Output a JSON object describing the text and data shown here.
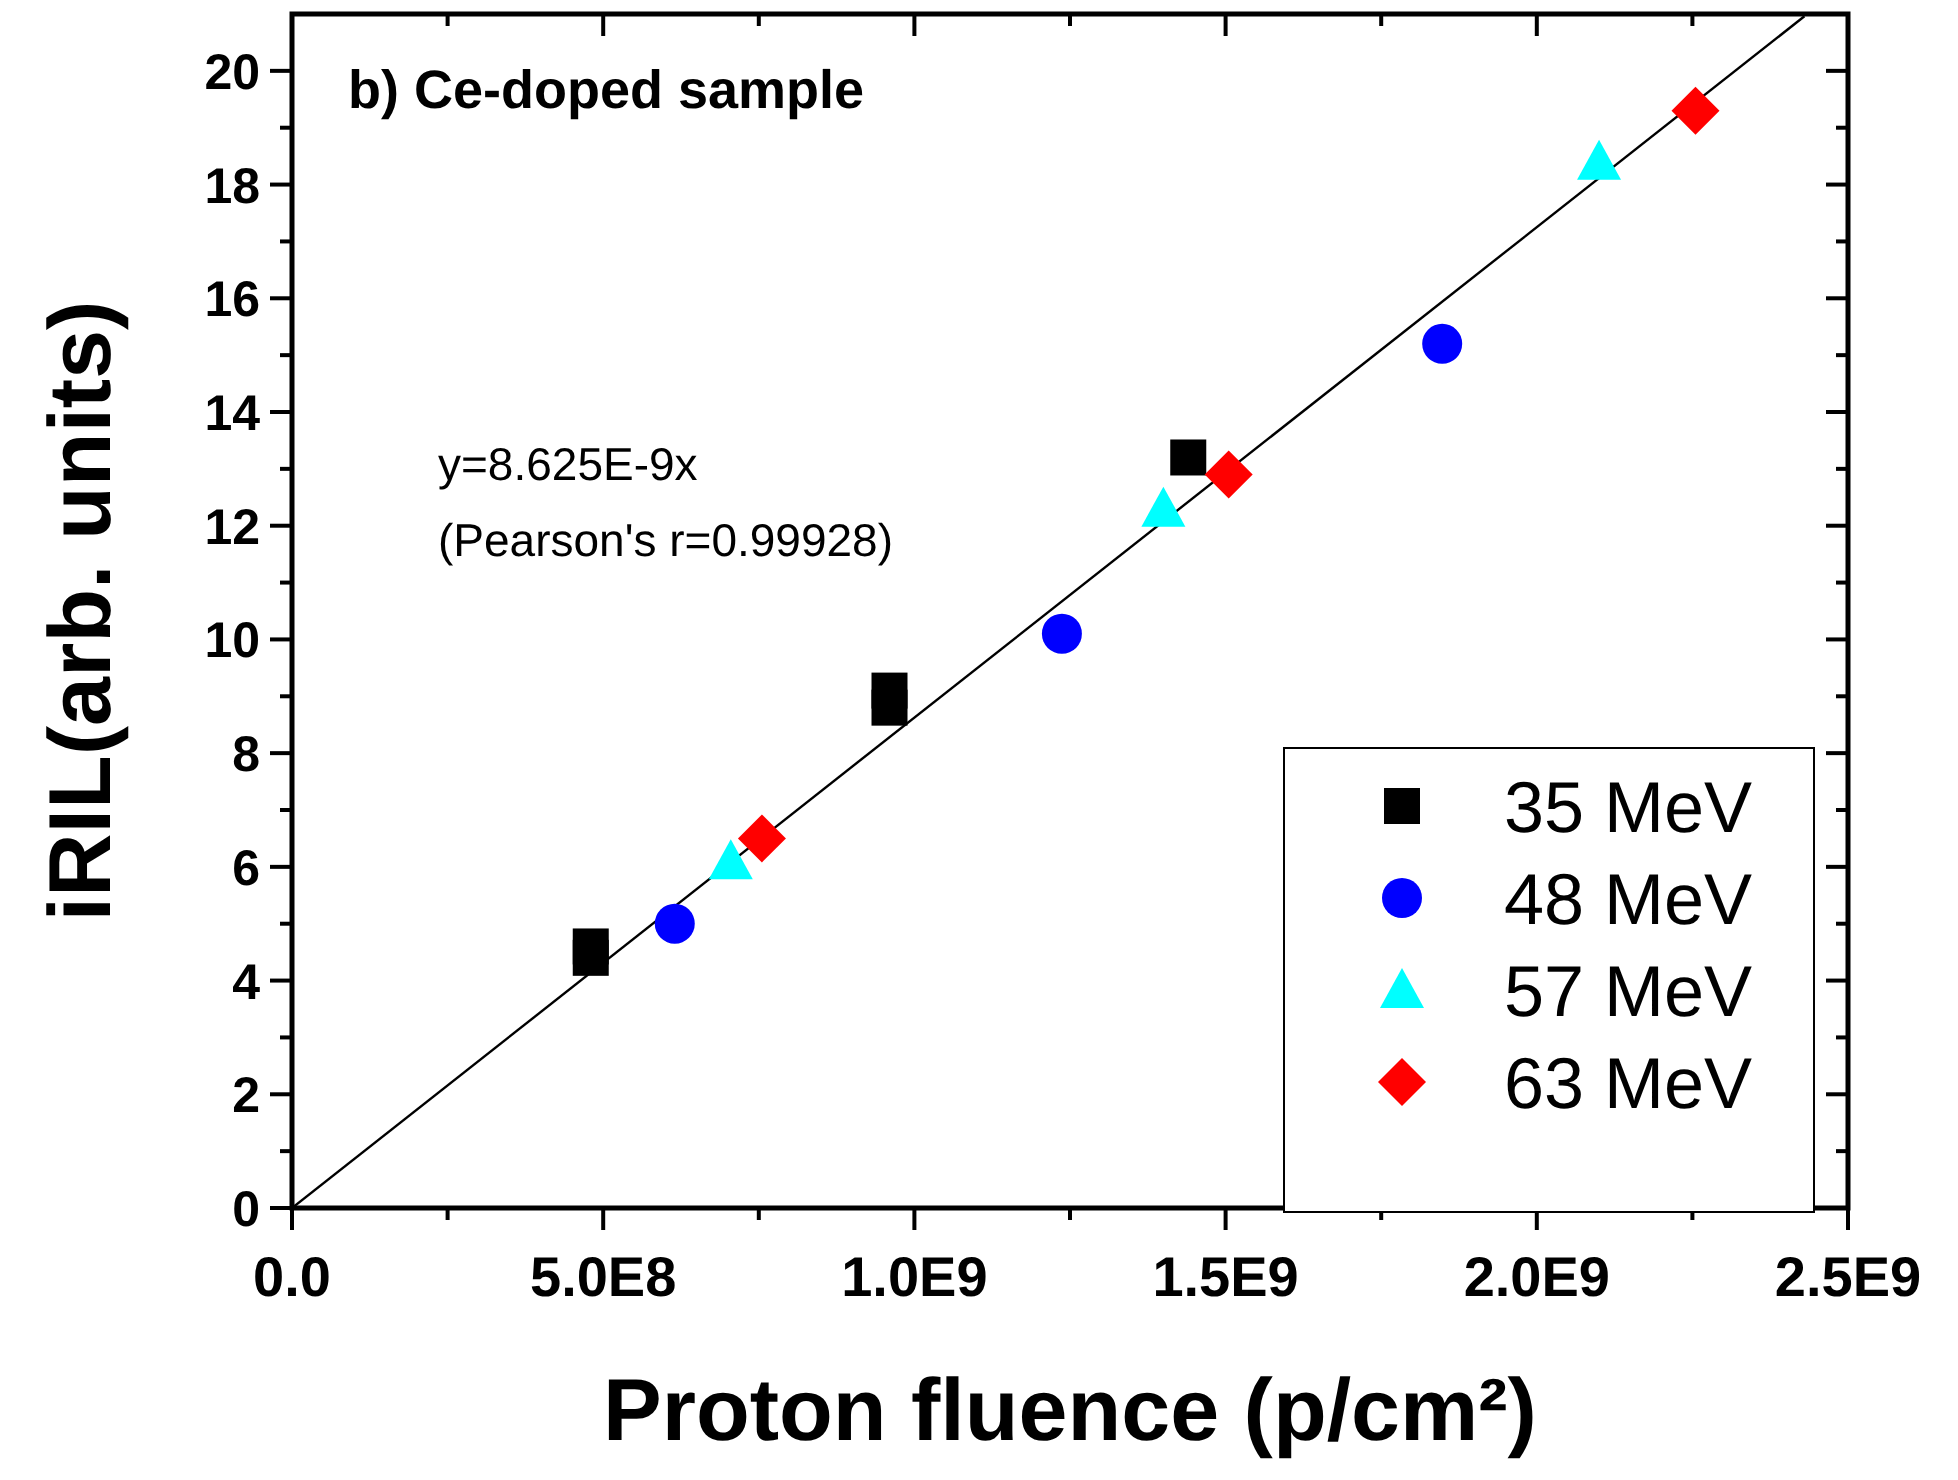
{
  "chart_data": {
    "type": "scatter",
    "title": "b) Ce-doped sample",
    "xlabel": "Proton fluence (p/cm²)",
    "ylabel": "iRIL(arb. units)",
    "annotations": [
      "y=8.625E-9x",
      "(Pearson's r=0.99928)"
    ],
    "xlim": [
      0,
      2500000000
    ],
    "ylim": [
      0,
      21
    ],
    "xticks": [
      {
        "value": 0,
        "label": "0.0"
      },
      {
        "value": 250000000,
        "label": null
      },
      {
        "value": 500000000,
        "label": "5.0E8"
      },
      {
        "value": 750000000,
        "label": null
      },
      {
        "value": 1000000000,
        "label": "1.0E9"
      },
      {
        "value": 1250000000,
        "label": null
      },
      {
        "value": 1500000000,
        "label": "1.5E9"
      },
      {
        "value": 1750000000,
        "label": null
      },
      {
        "value": 2000000000,
        "label": "2.0E9"
      },
      {
        "value": 2250000000,
        "label": null
      },
      {
        "value": 2500000000,
        "label": "2.5E9"
      }
    ],
    "yticks": [
      0,
      {
        "value": 1,
        "label": null
      },
      2,
      {
        "value": 3,
        "label": null
      },
      4,
      {
        "value": 5,
        "label": null
      },
      6,
      {
        "value": 7,
        "label": null
      },
      8,
      {
        "value": 9,
        "label": null
      },
      10,
      {
        "value": 11,
        "label": null
      },
      12,
      {
        "value": 13,
        "label": null
      },
      14,
      {
        "value": 15,
        "label": null
      },
      16,
      {
        "value": 17,
        "label": null
      },
      18,
      {
        "value": 19,
        "label": null
      },
      20
    ],
    "grid": false,
    "legend": "bottom right",
    "series": [
      {
        "type": "line",
        "color": "#000000",
        "marker": "none",
        "line_style": "solid",
        "x": [
          0,
          2430000000
        ],
        "values": [
          0,
          20.96
        ]
      },
      {
        "name": "35 MeV",
        "color": "#000000",
        "marker": "square",
        "x": [
          480000000,
          480000000,
          960000000,
          960000000,
          1440000000
        ],
        "values": [
          4.4,
          4.6,
          8.8,
          9.1,
          13.2
        ]
      },
      {
        "name": "48 MeV",
        "color": "#0000ff",
        "marker": "circle",
        "x": [
          615000000,
          1237000000,
          1848000000
        ],
        "values": [
          5.0,
          10.1,
          15.2
        ]
      },
      {
        "name": "57 MeV",
        "color": "#00ffff",
        "marker": "triangle",
        "x": [
          705000000,
          1400000000,
          2100000000
        ],
        "values": [
          6.1,
          12.3,
          18.4
        ]
      },
      {
        "name": "63 MeV",
        "color": "#ff0000",
        "marker": "diamond",
        "x": [
          755000000,
          1505000000,
          2255000000
        ],
        "values": [
          6.5,
          12.9,
          19.3
        ]
      }
    ]
  }
}
